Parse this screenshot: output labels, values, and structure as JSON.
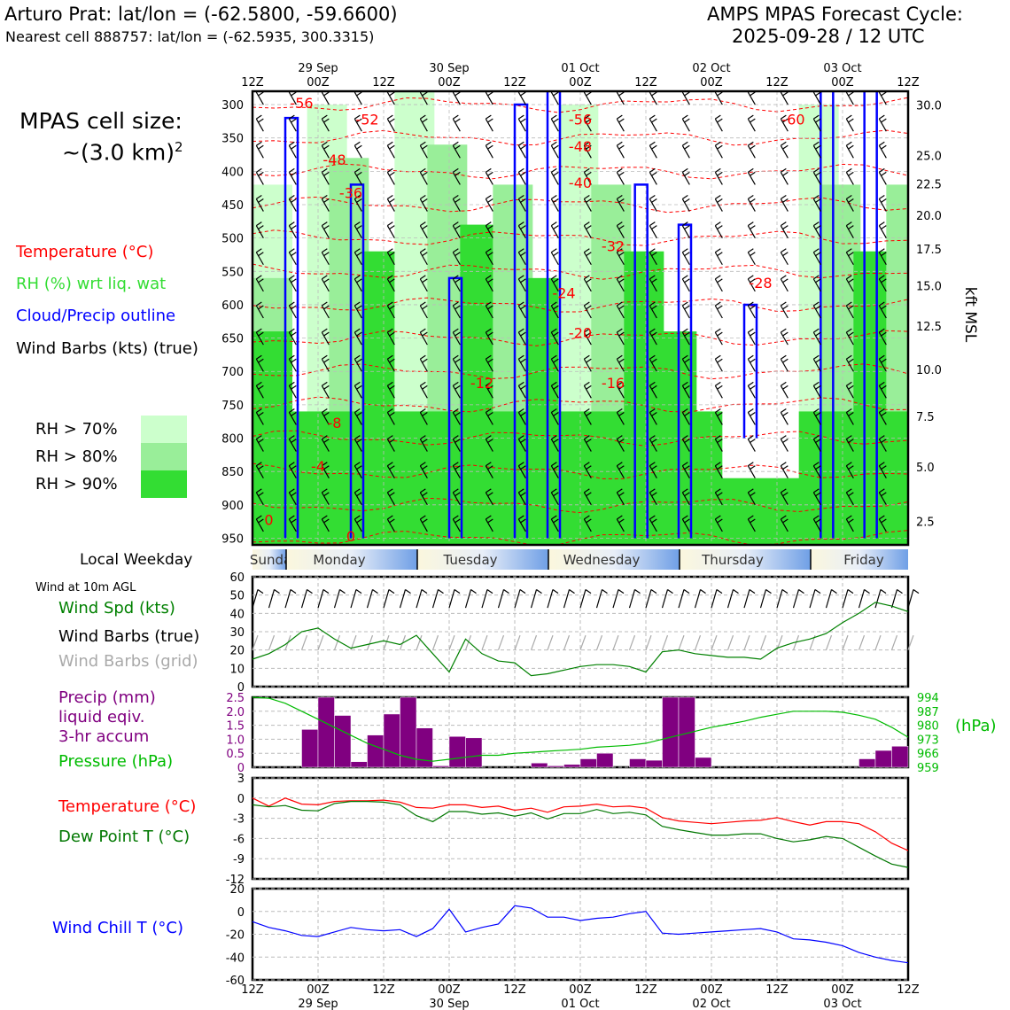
{
  "header": {
    "station_title": "Arturo Prat: lat/lon = (-62.5800, -59.6600)",
    "nearest_cell": "Nearest cell 888757: lat/lon = (-62.5935, 300.3315)",
    "cycle_title": "AMPS MPAS Forecast Cycle:",
    "cycle_date": "2025-09-28 / 12 UTC"
  },
  "cell_size": {
    "label": "MPAS cell size:",
    "value": "~(3.0 km)",
    "exponent": "2"
  },
  "legend": {
    "temperature": "Temperature (°C)",
    "rh": "RH (%) wrt liq. wat",
    "cloud": "Cloud/Precip outline",
    "barbs": "Wind Barbs (kts) (true)",
    "rh70": "RH > 70%",
    "rh80": "RH > 80%",
    "rh90": "RH > 90%"
  },
  "colors": {
    "temperature": "#ff0000",
    "rh": "#33dd33",
    "cloud": "#0000ff",
    "rh70": "#ccffcc",
    "rh80": "#99ee99",
    "rh90": "#33dd33",
    "precip": "#800080",
    "pressure": "#00bb00",
    "dewpoint": "#007700",
    "windchill": "#0000ff",
    "wind_speed": "#008000"
  },
  "time_axis": {
    "top_hours": [
      "12Z",
      "00Z",
      "12Z",
      "00Z",
      "12Z",
      "00Z",
      "12Z",
      "00Z",
      "12Z",
      "00Z",
      "12Z"
    ],
    "dates": [
      "29 Sep",
      "30 Sep",
      "01 Oct",
      "02 Oct",
      "03 Oct"
    ]
  },
  "weekday": {
    "label": "Local Weekday",
    "days": [
      "Sunday",
      "Monday",
      "Tuesday",
      "Wednesday",
      "Thursday",
      "Friday"
    ]
  },
  "surface_labels": {
    "wind_header": "Wind at 10m AGL",
    "wind_speed": "Wind Spd (kts)",
    "barbs_true": "Wind Barbs (true)",
    "barbs_grid": "Wind Barbs (grid)",
    "precip_1": "Precip (mm)",
    "precip_2": "liquid eqiv.",
    "precip_3": "3-hr accum",
    "pressure": "Pressure (hPa)",
    "pressure_unit": "(hPa)",
    "temperature": "Temperature (°C)",
    "dewpoint": "Dew Point T (°C)",
    "windchill": "Wind Chill T (°C)"
  },
  "chart_data": [
    {
      "type": "heatmap",
      "name": "cross_section",
      "y_ticks_hpa": [
        "300",
        "350",
        "400",
        "450",
        "500",
        "550",
        "600",
        "650",
        "700",
        "750",
        "800",
        "850",
        "900",
        "950"
      ],
      "right_ticks_kft": [
        "30.0",
        "25.0",
        "22.5",
        "20.0",
        "17.5",
        "15.0",
        "12.5",
        "10.0",
        "7.5",
        "5.0",
        "2.5"
      ],
      "right_axis_label": "kft MSL",
      "temperature_contour_labels": [
        {
          "t": 9,
          "p": 305,
          "label": "-56"
        },
        {
          "t": 21,
          "p": 330,
          "label": "-52"
        },
        {
          "t": 60,
          "p": 330,
          "label": "-56"
        },
        {
          "t": 99,
          "p": 330,
          "label": "-60"
        },
        {
          "t": 15,
          "p": 390,
          "label": "-48"
        },
        {
          "t": 60,
          "p": 370,
          "label": "-48"
        },
        {
          "t": 18,
          "p": 440,
          "label": "-36"
        },
        {
          "t": 60,
          "p": 425,
          "label": "-40"
        },
        {
          "t": 66,
          "p": 520,
          "label": "-32"
        },
        {
          "t": 93,
          "p": 575,
          "label": "-28"
        },
        {
          "t": 57,
          "p": 590,
          "label": "-24"
        },
        {
          "t": 60,
          "p": 650,
          "label": "-20"
        },
        {
          "t": 66,
          "p": 725,
          "label": "-16"
        },
        {
          "t": 42,
          "p": 725,
          "label": "-12"
        },
        {
          "t": 15,
          "p": 785,
          "label": "-8"
        },
        {
          "t": 12,
          "p": 850,
          "label": "-4"
        },
        {
          "t": 3,
          "p": 930,
          "label": "0"
        },
        {
          "t": 18,
          "p": 955,
          "label": "0"
        }
      ]
    },
    {
      "type": "line",
      "name": "wind_speed_kts",
      "x_hours": [
        0,
        3,
        6,
        9,
        12,
        15,
        18,
        21,
        24,
        27,
        30,
        33,
        36,
        39,
        42,
        45,
        48,
        51,
        54,
        57,
        60,
        63,
        66,
        69,
        72,
        75,
        78,
        81,
        84,
        87,
        90,
        93,
        96,
        99,
        102,
        105,
        108,
        111,
        114,
        117,
        120
      ],
      "values": [
        15,
        18,
        23,
        30,
        32,
        26,
        21,
        23,
        25,
        23,
        28,
        18,
        8,
        26,
        18,
        14,
        13,
        6,
        7,
        9,
        11,
        12,
        12,
        11,
        8,
        19,
        20,
        18,
        17,
        16,
        16,
        15,
        21,
        24,
        26,
        29,
        35,
        40,
        46,
        44,
        41
      ],
      "ylim": [
        0,
        60
      ],
      "yticks": [
        0,
        10,
        20,
        30,
        40,
        50,
        60
      ]
    },
    {
      "type": "bar",
      "name": "precip_3hr_mm",
      "x_hours": [
        9,
        12,
        15,
        18,
        21,
        24,
        27,
        30,
        33,
        36,
        39,
        42,
        45,
        48,
        51,
        54,
        57,
        60,
        63,
        66,
        69,
        72,
        75,
        78,
        81,
        84,
        87,
        90,
        93,
        96,
        99,
        102,
        105,
        108,
        111,
        114,
        117
      ],
      "values": [
        1.35,
        2.5,
        1.85,
        0.2,
        1.15,
        1.9,
        2.5,
        1.4,
        0.05,
        1.1,
        1.05,
        0.0,
        0.0,
        0.0,
        0.15,
        0.05,
        0.1,
        0.3,
        0.5,
        0.0,
        0.3,
        0.25,
        2.5,
        2.5,
        0.35,
        0.0,
        0.0,
        0.0,
        0.0,
        0.0,
        0.0,
        0.0,
        0.0,
        0.0,
        0.3,
        0.6,
        0.75
      ],
      "ylim": [
        0,
        2.5
      ],
      "yticks": [
        "0",
        "0.5",
        "1.0",
        "1.5",
        "2.0",
        "2.5"
      ]
    },
    {
      "type": "line",
      "name": "pressure_hpa",
      "x_hours": [
        0,
        3,
        6,
        9,
        12,
        15,
        18,
        21,
        24,
        27,
        30,
        33,
        36,
        39,
        42,
        45,
        48,
        51,
        54,
        57,
        60,
        63,
        66,
        69,
        72,
        75,
        78,
        81,
        84,
        87,
        90,
        93,
        96,
        99,
        102,
        105,
        108,
        111,
        114,
        117,
        120
      ],
      "values": [
        994,
        993.5,
        991,
        987,
        983,
        979,
        975,
        971,
        968,
        965,
        963,
        962,
        963,
        964,
        965,
        965,
        966,
        966.5,
        967,
        967.5,
        968,
        969,
        969.5,
        970,
        971,
        973,
        975,
        977,
        979,
        980.5,
        982,
        984,
        985.5,
        987,
        987,
        987,
        986.5,
        985,
        983,
        979,
        974
      ],
      "ylim": [
        959,
        994
      ],
      "yticks": [
        "994",
        "987",
        "980",
        "973",
        "966",
        "959"
      ]
    },
    {
      "type": "line",
      "name": "temperature_c",
      "x_hours": [
        0,
        3,
        6,
        9,
        12,
        15,
        18,
        21,
        24,
        27,
        30,
        33,
        36,
        39,
        42,
        45,
        48,
        51,
        54,
        57,
        60,
        63,
        66,
        69,
        72,
        75,
        78,
        81,
        84,
        87,
        90,
        93,
        96,
        99,
        102,
        105,
        108,
        111,
        114,
        117,
        120
      ],
      "values": [
        0,
        -1.2,
        0,
        -0.9,
        -1.0,
        -0.5,
        -0.4,
        -0.4,
        -0.3,
        -0.6,
        -1.4,
        -1.5,
        -1.0,
        -1.0,
        -1.4,
        -1.2,
        -1.8,
        -1.5,
        -2.1,
        -1.3,
        -1.2,
        -0.9,
        -1.3,
        -1.2,
        -1.5,
        -2.9,
        -3.4,
        -3.6,
        -3.8,
        -3.6,
        -3.4,
        -3.3,
        -2.9,
        -3.5,
        -4.0,
        -3.5,
        -3.5,
        -3.8,
        -5.0,
        -6.7,
        -7.8
      ],
      "ylim": [
        -12,
        3
      ],
      "yticks": [
        "3",
        "0",
        "-3",
        "-6",
        "-9",
        "-12"
      ]
    },
    {
      "type": "line",
      "name": "dewpoint_c",
      "x_hours": [
        0,
        3,
        6,
        9,
        12,
        15,
        18,
        21,
        24,
        27,
        30,
        33,
        36,
        39,
        42,
        45,
        48,
        51,
        54,
        57,
        60,
        63,
        66,
        69,
        72,
        75,
        78,
        81,
        84,
        87,
        90,
        93,
        96,
        99,
        102,
        105,
        108,
        111,
        114,
        117,
        120
      ],
      "values": [
        -1.0,
        -1.3,
        -1.1,
        -1.8,
        -1.9,
        -0.8,
        -0.5,
        -0.5,
        -0.6,
        -1.0,
        -2.6,
        -3.5,
        -2.0,
        -2.0,
        -2.4,
        -2.2,
        -2.7,
        -2.2,
        -3.1,
        -2.3,
        -2.3,
        -1.7,
        -2.3,
        -2.1,
        -2.5,
        -4.2,
        -4.7,
        -5.1,
        -5.5,
        -5.5,
        -5.3,
        -5.3,
        -6.0,
        -6.5,
        -6.2,
        -5.7,
        -6.0,
        -7.3,
        -8.6,
        -9.8,
        -10.3
      ],
      "ylim": [
        -12,
        3
      ],
      "yticks": [
        "3",
        "0",
        "-3",
        "-6",
        "-9",
        "-12"
      ]
    },
    {
      "type": "line",
      "name": "wind_chill_c",
      "x_hours": [
        0,
        3,
        6,
        9,
        12,
        15,
        18,
        21,
        24,
        27,
        30,
        33,
        36,
        39,
        42,
        45,
        48,
        51,
        54,
        57,
        60,
        63,
        66,
        69,
        72,
        75,
        78,
        81,
        84,
        87,
        90,
        93,
        96,
        99,
        102,
        105,
        108,
        111,
        114,
        117,
        120
      ],
      "values": [
        -9,
        -14,
        -17,
        -21,
        -22,
        -18,
        -14,
        -16,
        -17,
        -16,
        -22,
        -15,
        2,
        -18,
        -14,
        -11,
        5,
        3,
        -5,
        -5,
        -8,
        -6,
        -5,
        -2,
        0,
        -19,
        -20,
        -19,
        -18,
        -17,
        -16,
        -15,
        -18,
        -24,
        -25,
        -27,
        -30,
        -36,
        -40,
        -43,
        -45
      ],
      "ylim": [
        -60,
        20
      ],
      "yticks": [
        "20",
        "0",
        "-20",
        "-40",
        "-60"
      ]
    }
  ]
}
